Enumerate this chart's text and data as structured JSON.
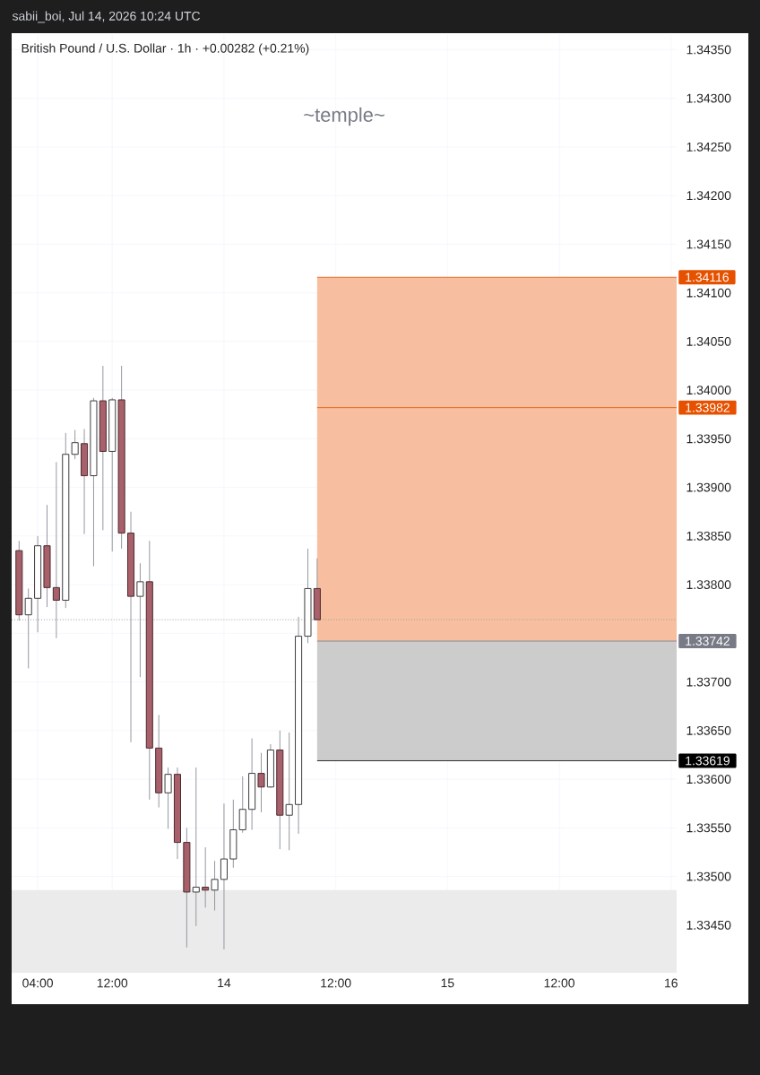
{
  "chart_data": {
    "type": "candlestick",
    "title": "British Pound / U.S. Dollar · 1h · +0.00282 (+0.21%)",
    "annotations": [
      "sabii_boi, Jul 14, 2026 10:24 UTC",
      "~temple~"
    ],
    "x": [
      "2026-07-13T02:00",
      "2026-07-13T03:00",
      "2026-07-13T04:00",
      "2026-07-13T05:00",
      "2026-07-13T06:00",
      "2026-07-13T07:00",
      "2026-07-13T08:00",
      "2026-07-13T09:00",
      "2026-07-13T10:00",
      "2026-07-13T11:00",
      "2026-07-13T12:00",
      "2026-07-13T13:00",
      "2026-07-13T14:00",
      "2026-07-13T15:00",
      "2026-07-13T16:00",
      "2026-07-13T17:00",
      "2026-07-13T18:00",
      "2026-07-13T19:00",
      "2026-07-13T20:00",
      "2026-07-13T21:00",
      "2026-07-13T22:00",
      "2026-07-13T23:00",
      "2026-07-14T00:00",
      "2026-07-14T01:00",
      "2026-07-14T02:00",
      "2026-07-14T03:00",
      "2026-07-14T04:00",
      "2026-07-14T05:00",
      "2026-07-14T06:00",
      "2026-07-14T07:00",
      "2026-07-14T08:00",
      "2026-07-14T09:00",
      "2026-07-14T10:00"
    ],
    "ohlc": [
      [
        1.33835,
        1.33845,
        1.33763,
        1.33769
      ],
      [
        1.33769,
        1.33796,
        1.33714,
        1.33786
      ],
      [
        1.33786,
        1.3385,
        1.33751,
        1.3384
      ],
      [
        1.3384,
        1.33882,
        1.33777,
        1.33797
      ],
      [
        1.33797,
        1.33926,
        1.33745,
        1.33784
      ],
      [
        1.33784,
        1.33956,
        1.33776,
        1.33934
      ],
      [
        1.33934,
        1.33959,
        1.33929,
        1.33946
      ],
      [
        1.33945,
        1.3396,
        1.33852,
        1.33912
      ],
      [
        1.33912,
        1.33992,
        1.33819,
        1.33989
      ],
      [
        1.33989,
        1.34025,
        1.33856,
        1.33937
      ],
      [
        1.33937,
        1.33992,
        1.33834,
        1.3399
      ],
      [
        1.3399,
        1.34025,
        1.33837,
        1.33853
      ],
      [
        1.33853,
        1.33875,
        1.33638,
        1.33788
      ],
      [
        1.33788,
        1.33822,
        1.33705,
        1.33803
      ],
      [
        1.33803,
        1.33845,
        1.33579,
        1.33632
      ],
      [
        1.33632,
        1.33666,
        1.33571,
        1.33586
      ],
      [
        1.33586,
        1.33612,
        1.33549,
        1.33605
      ],
      [
        1.33605,
        1.33612,
        1.33518,
        1.33535
      ],
      [
        1.33535,
        1.3355,
        1.33427,
        1.33484
      ],
      [
        1.33484,
        1.33612,
        1.33449,
        1.33489
      ],
      [
        1.33489,
        1.3353,
        1.33468,
        1.33486
      ],
      [
        1.33486,
        1.33516,
        1.33465,
        1.33497
      ],
      [
        1.33497,
        1.33575,
        1.33425,
        1.33518
      ],
      [
        1.33518,
        1.33579,
        1.33509,
        1.33548
      ],
      [
        1.33548,
        1.33603,
        1.33545,
        1.33569
      ],
      [
        1.33569,
        1.33642,
        1.33548,
        1.33606
      ],
      [
        1.33606,
        1.33627,
        1.33566,
        1.33592
      ],
      [
        1.33592,
        1.33636,
        1.33591,
        1.3363
      ],
      [
        1.3363,
        1.3365,
        1.33528,
        1.33563
      ],
      [
        1.33563,
        1.33648,
        1.33527,
        1.33574
      ],
      [
        1.33574,
        1.33767,
        1.33544,
        1.33747
      ],
      [
        1.33747,
        1.33837,
        1.3374,
        1.33796
      ],
      [
        1.33796,
        1.33827,
        1.33764,
        1.33764
      ]
    ],
    "xlim": [
      "2026-07-13T01:12",
      "2026-07-16T00:36"
    ],
    "xticks": [
      {
        "value": "2026-07-13T04:00",
        "label": "04:00"
      },
      {
        "value": "2026-07-13T12:00",
        "label": "12:00"
      },
      {
        "value": "2026-07-14T00:00",
        "label": "14"
      },
      {
        "value": "2026-07-14T12:00",
        "label": "12:00"
      },
      {
        "value": "2026-07-15T00:00",
        "label": "15"
      },
      {
        "value": "2026-07-15T12:00",
        "label": "12:00"
      },
      {
        "value": "2026-07-16T00:00",
        "label": "16"
      }
    ],
    "ylim": [
      1.33401,
      1.34367
    ],
    "yticks": [
      {
        "value": 1.3345,
        "label": "1.33450"
      },
      {
        "value": 1.335,
        "label": "1.33500"
      },
      {
        "value": 1.3355,
        "label": "1.33550"
      },
      {
        "value": 1.336,
        "label": "1.33600"
      },
      {
        "value": 1.3365,
        "label": "1.33650"
      },
      {
        "value": 1.337,
        "label": "1.33700"
      },
      {
        "value": 1.3375,
        "label": null
      },
      {
        "value": 1.338,
        "label": "1.33800"
      },
      {
        "value": 1.3385,
        "label": "1.33850"
      },
      {
        "value": 1.339,
        "label": "1.33900"
      },
      {
        "value": 1.3395,
        "label": "1.33950"
      },
      {
        "value": 1.34,
        "label": "1.34000"
      },
      {
        "value": 1.3405,
        "label": "1.34050"
      },
      {
        "value": 1.341,
        "label": "1.34100"
      },
      {
        "value": 1.3415,
        "label": "1.34150"
      },
      {
        "value": 1.342,
        "label": "1.34200"
      },
      {
        "value": 1.3425,
        "label": "1.34250"
      },
      {
        "value": 1.343,
        "label": "1.34300"
      },
      {
        "value": 1.3435,
        "label": "1.34350"
      }
    ],
    "grid": true,
    "bands": [
      {
        "axis": "y",
        "from": 1.33742,
        "to": 1.34116,
        "color": "#f7bfa0"
      },
      {
        "axis": "y",
        "from": 1.33619,
        "to": 1.33742,
        "color": "#cccccc"
      },
      {
        "axis": "y",
        "from": 1.33401,
        "to": 1.33486,
        "color": "#ebebeb"
      }
    ],
    "ref_lines": [
      {
        "axis": "y",
        "value": 1.34116,
        "label": "1.34116",
        "color": "#e65100"
      },
      {
        "axis": "y",
        "value": 1.33982,
        "label": "1.33982",
        "color": "#e65100"
      },
      {
        "axis": "y",
        "value": 1.33742,
        "label": "1.33742",
        "color": "#787b86"
      },
      {
        "axis": "y",
        "value": 1.33619,
        "label": "1.33619",
        "color": "#000000"
      },
      {
        "axis": "y",
        "value": 1.33764,
        "color": "#9e9e9e",
        "line_style": "dotted"
      }
    ]
  }
}
